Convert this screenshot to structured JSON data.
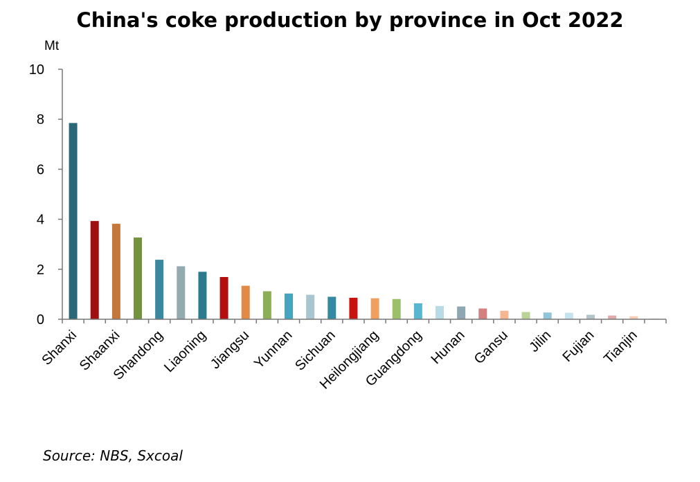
{
  "chart_data": {
    "type": "bar",
    "title": "China's coke production by province in Oct 2022",
    "ylabel": "Mt",
    "xlabel": "",
    "ylim": [
      0,
      10
    ],
    "yticks": [
      0,
      2,
      4,
      6,
      8,
      10
    ],
    "grid": false,
    "legend": "none",
    "categories": [
      "Shanxi",
      "",
      "Shaanxi",
      "",
      "Shandong",
      "",
      "Liaoning",
      "",
      "Jiangsu",
      "",
      "Yunnan",
      "",
      "Sichuan",
      "",
      "Heilongjiang",
      "",
      "Guangdong",
      "",
      "Hunan",
      "",
      "Gansu",
      "",
      "Jilin",
      "",
      "Fujian",
      "",
      "Tianjin",
      ""
    ],
    "values": [
      7.85,
      3.93,
      3.82,
      3.27,
      2.38,
      2.12,
      1.9,
      1.69,
      1.34,
      1.12,
      1.03,
      0.98,
      0.9,
      0.86,
      0.84,
      0.81,
      0.64,
      0.53,
      0.51,
      0.43,
      0.34,
      0.29,
      0.27,
      0.26,
      0.18,
      0.15,
      0.12,
      0.03
    ],
    "colors": [
      "#2a6878",
      "#a11010",
      "#c4773a",
      "#73933f",
      "#3a87a0",
      "#93aab1",
      "#2b7a8e",
      "#b30f0f",
      "#e08a46",
      "#8bae57",
      "#45a4c0",
      "#a9c5cf",
      "#3589a0",
      "#c81212",
      "#f0a05e",
      "#9cc06a",
      "#58b6d2",
      "#b8dbe6",
      "#8ea7b0",
      "#d48080",
      "#f5b690",
      "#bad396",
      "#90c6d7",
      "#c8e2ec",
      "#b3c4c9",
      "#e0aaaa",
      "#f8ccb0",
      "#dbe4cc"
    ]
  },
  "source": "Source: NBS, Sxcoal"
}
